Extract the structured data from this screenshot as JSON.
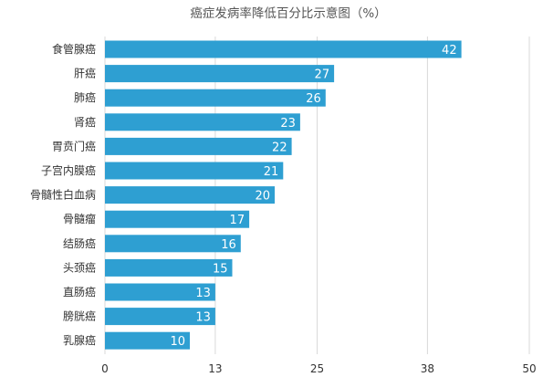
{
  "chart_data": {
    "type": "bar",
    "orientation": "horizontal",
    "title": "癌症发病率降低百分比示意图（%）",
    "categories": [
      "食管腺癌",
      "肝癌",
      "肺癌",
      "肾癌",
      "胃贲门癌",
      "子宫内膜癌",
      "骨髓性白血病",
      "骨髓瘤",
      "结肠癌",
      "头颈癌",
      "直肠癌",
      "膀胱癌",
      "乳腺癌"
    ],
    "values": [
      42,
      27,
      26,
      23,
      22,
      21,
      20,
      17,
      16,
      15,
      13,
      13,
      10
    ],
    "xticks": [
      "0",
      "13",
      "25",
      "38",
      "50"
    ],
    "xlim": [
      0,
      50
    ],
    "xlabel": "",
    "ylabel": "",
    "grid": true,
    "bar_color": "#2e9fd2",
    "grid_color": "#d9d9d9"
  }
}
